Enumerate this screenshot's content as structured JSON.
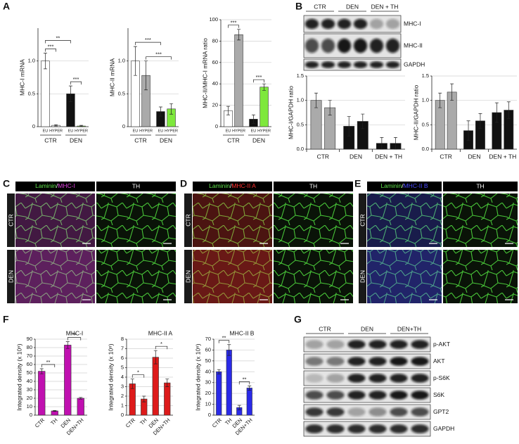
{
  "panel_letters": [
    "A",
    "B",
    "C",
    "D",
    "E",
    "F",
    "G"
  ],
  "chart_data": [
    {
      "type": "bar",
      "y_label": "MHC-I mRNA",
      "categories": [
        "EU",
        "HYPER",
        "EU",
        "HYPER"
      ],
      "groups": [
        "CTR",
        "DEN"
      ],
      "values": [
        1.0,
        0.02,
        0.5,
        0.01
      ],
      "errors": [
        0.12,
        0.01,
        0.12,
        0.01
      ],
      "colors": [
        "#ffffff",
        "#ffffff",
        "#111111",
        "#7ee83c"
      ],
      "ylim": [
        0,
        1.5
      ],
      "yticks": [
        0,
        0.5,
        {
          "value": 1,
          "label": "1.0"
        }
      ],
      "grid": true,
      "brackets": [
        {
          "from": 0,
          "to": 2,
          "label": "**"
        },
        {
          "from": 0,
          "to": 1,
          "label": "***"
        },
        {
          "from": 2,
          "to": 3,
          "label": "***"
        }
      ]
    },
    {
      "type": "bar",
      "y_label": "MHC-II mRNA",
      "categories": [
        "EU",
        "HYPER",
        "EU",
        "HYPER"
      ],
      "groups": [
        "CTR",
        "DEN"
      ],
      "values": [
        1.0,
        0.78,
        0.23,
        0.27
      ],
      "errors": [
        0.22,
        0.22,
        0.07,
        0.08
      ],
      "colors": [
        "#ffffff",
        "#aaaaaa",
        "#111111",
        "#7ee83c"
      ],
      "ylim": [
        0,
        1.5
      ],
      "yticks": [
        0,
        0.5,
        {
          "value": 1,
          "label": "1.0"
        }
      ],
      "grid": true,
      "brackets": [
        {
          "from": 0,
          "to": 2,
          "label": "***"
        },
        {
          "from": 1,
          "to": 3,
          "label": "***"
        }
      ]
    },
    {
      "type": "bar",
      "y_label": "MHC-II/MHC-I mRNA ratio",
      "categories": [
        "EU",
        "HYPER",
        "EU",
        "HYPER"
      ],
      "groups": [
        "CTR",
        "DEN"
      ],
      "values": [
        15,
        86,
        7,
        37
      ],
      "errors": [
        4,
        5,
        4,
        3
      ],
      "colors": [
        "#ffffff",
        "#aaaaaa",
        "#111111",
        "#7ee83c"
      ],
      "ylim": [
        0,
        100
      ],
      "yticks": [
        0,
        20,
        40,
        60,
        80,
        100
      ],
      "grid": true,
      "brackets": [
        {
          "from": 0,
          "to": 1,
          "label": "***"
        },
        {
          "from": 2,
          "to": 3,
          "label": "***"
        }
      ]
    },
    {
      "type": "bar",
      "y_label": "MHC-I/GAPDH ratio",
      "groups": [
        "CTR",
        "DEN",
        "DEN + TH"
      ],
      "values": [
        1.0,
        0.85,
        0.47,
        0.57,
        0.12,
        0.12
      ],
      "errors": [
        0.15,
        0.15,
        0.2,
        0.15,
        0.12,
        0.12
      ],
      "colors": [
        "#aaaaaa",
        "#aaaaaa",
        "#111111",
        "#111111",
        "#111111",
        "#111111"
      ],
      "ylim": [
        0,
        1.5
      ],
      "yticks": [
        {
          "value": 0,
          "label": "0.0"
        },
        0.5,
        {
          "value": 1,
          "label": "1.0"
        },
        1.5
      ],
      "grid": true
    },
    {
      "type": "bar",
      "y_label": "MHC-II/GAPDH ratio",
      "groups": [
        "CTR",
        "DEN",
        "DEN + TH"
      ],
      "values": [
        1.0,
        1.17,
        0.38,
        0.58,
        0.75,
        0.8
      ],
      "errors": [
        0.15,
        0.17,
        0.2,
        0.15,
        0.2,
        0.17
      ],
      "colors": [
        "#aaaaaa",
        "#aaaaaa",
        "#111111",
        "#111111",
        "#111111",
        "#111111"
      ],
      "ylim": [
        0,
        1.5
      ],
      "yticks": [
        {
          "value": 0,
          "label": "0.0"
        },
        0.5,
        {
          "value": 1,
          "label": "1.0"
        },
        1.5
      ],
      "grid": true
    },
    {
      "type": "bar",
      "title": "MHC-I",
      "y_label": "Integrated density (x 10⁶)",
      "categories": [
        "CTR",
        "TH",
        "DEN",
        "DEN+TH"
      ],
      "values": [
        52,
        5,
        83,
        20
      ],
      "errors": [
        3,
        0.5,
        4,
        1
      ],
      "color": "#c010b0",
      "ylim": [
        0,
        90
      ],
      "yticks": [
        0,
        10,
        20,
        30,
        40,
        50,
        60,
        70,
        80,
        90
      ],
      "grid": true,
      "brackets": [
        {
          "from": 0,
          "to": 1,
          "label": "**"
        },
        {
          "from": 2,
          "to": 3,
          "label": "**"
        }
      ]
    },
    {
      "type": "bar",
      "title": "MHC-II A",
      "y_label": "Integrated density (x 10⁶)",
      "categories": [
        "CTR",
        "TH",
        "DEN",
        "DEN+TH"
      ],
      "values": [
        3.3,
        1.7,
        6.1,
        3.4
      ],
      "errors": [
        0.5,
        0.3,
        0.7,
        0.4
      ],
      "color": "#dd1a1a",
      "ylim": [
        0,
        8
      ],
      "yticks": [
        0,
        1,
        2,
        3,
        4,
        5,
        6,
        7,
        8
      ],
      "grid": true,
      "brackets": [
        {
          "from": 0,
          "to": 1,
          "label": "*"
        },
        {
          "from": 2,
          "to": 3,
          "label": "*"
        }
      ]
    },
    {
      "type": "bar",
      "title": "MHC-II B",
      "y_label": "Integrated density (x 10⁶)",
      "categories": [
        "CTR",
        "TH",
        "DEN",
        "DEN+TH"
      ],
      "values": [
        40,
        60,
        7,
        25
      ],
      "errors": [
        2,
        5,
        2,
        2
      ],
      "color": "#2a2ae8",
      "ylim": [
        0,
        70
      ],
      "yticks": [
        0,
        10,
        20,
        30,
        40,
        50,
        60,
        70
      ],
      "grid": true,
      "brackets": [
        {
          "from": 0,
          "to": 1,
          "label": "**"
        },
        {
          "from": 2,
          "to": 3,
          "label": "**"
        }
      ]
    }
  ],
  "blot_b": {
    "groups": [
      "CTR",
      "DEN",
      "DEN + TH"
    ],
    "bands": [
      "MHC-I",
      "MHC-II",
      "GAPDH"
    ]
  },
  "micrographs": [
    {
      "stain": [
        "Laminin",
        "/",
        "MHC-I"
      ],
      "color": "#e040e0",
      "treatment": "TH",
      "rows": [
        "CTR",
        "DEN"
      ]
    },
    {
      "stain": [
        "Laminin",
        "/",
        "MHC-II A"
      ],
      "color": "#ff3030",
      "treatment": "TH",
      "rows": [
        "CTR",
        "DEN"
      ]
    },
    {
      "stain": [
        "Laminin",
        "/",
        "MHC-II B"
      ],
      "color": "#4a4aff",
      "treatment": "TH",
      "rows": [
        "CTR",
        "DEN"
      ]
    }
  ],
  "blot_g": {
    "groups": [
      "CTR",
      "DEN",
      "DEN+TH"
    ],
    "bands": [
      "p-AKT",
      "AKT",
      "p-S6K",
      "S6K",
      "GPT2",
      "GAPDH"
    ]
  }
}
